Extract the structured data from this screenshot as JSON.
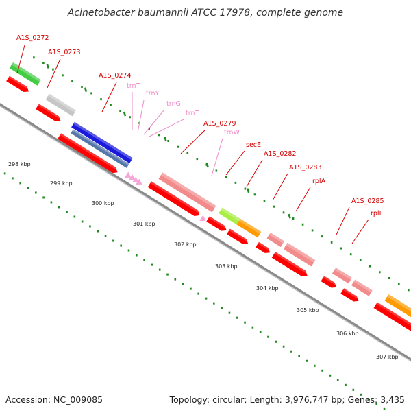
{
  "title": "Acinetobacter baumannii ATCC 17978, complete genome",
  "footer": {
    "accession": "Accession: NC_009085",
    "summary": "Topology: circular; Length: 3,976,747 bp; Genes: 3,435"
  },
  "colors": {
    "backbone": "#8a8a8a",
    "tick": "#1f8a1f",
    "gene_label": "#d40000",
    "rna_label": "#f08ac8",
    "orf_red": "#ff0000",
    "gene_pink": "#f28b8b",
    "gene_green": "#44cc44",
    "gene_gray": "#c6c6c6",
    "gene_blue": "#1a1add",
    "gene_steel": "#5577aa",
    "gene_lime": "#aaee44",
    "gene_orange": "#ff9a00",
    "trna": "#f5a8d8"
  },
  "kbp_labels": [
    "298 kbp",
    "299 kbp",
    "300 kbp",
    "301 kbp",
    "302 kbp",
    "303 kbp",
    "304 kbp",
    "305 kbp",
    "306 kbp",
    "307 kbp"
  ],
  "gene_labels": [
    {
      "text": "A1S_0272",
      "color": "red"
    },
    {
      "text": "A1S_0273",
      "color": "red"
    },
    {
      "text": "A1S_0274",
      "color": "red"
    },
    {
      "text": "trnT",
      "color": "pink"
    },
    {
      "text": "trnY",
      "color": "pink"
    },
    {
      "text": "trnG",
      "color": "pink"
    },
    {
      "text": "trnT",
      "color": "pink"
    },
    {
      "text": "A1S_0279",
      "color": "red"
    },
    {
      "text": "trnW",
      "color": "pink"
    },
    {
      "text": "secE",
      "color": "red"
    },
    {
      "text": "A1S_0282",
      "color": "red"
    },
    {
      "text": "A1S_0283",
      "color": "red"
    },
    {
      "text": "rplA",
      "color": "red"
    },
    {
      "text": "A1S_0285",
      "color": "red"
    },
    {
      "text": "rplL",
      "color": "red"
    }
  ]
}
